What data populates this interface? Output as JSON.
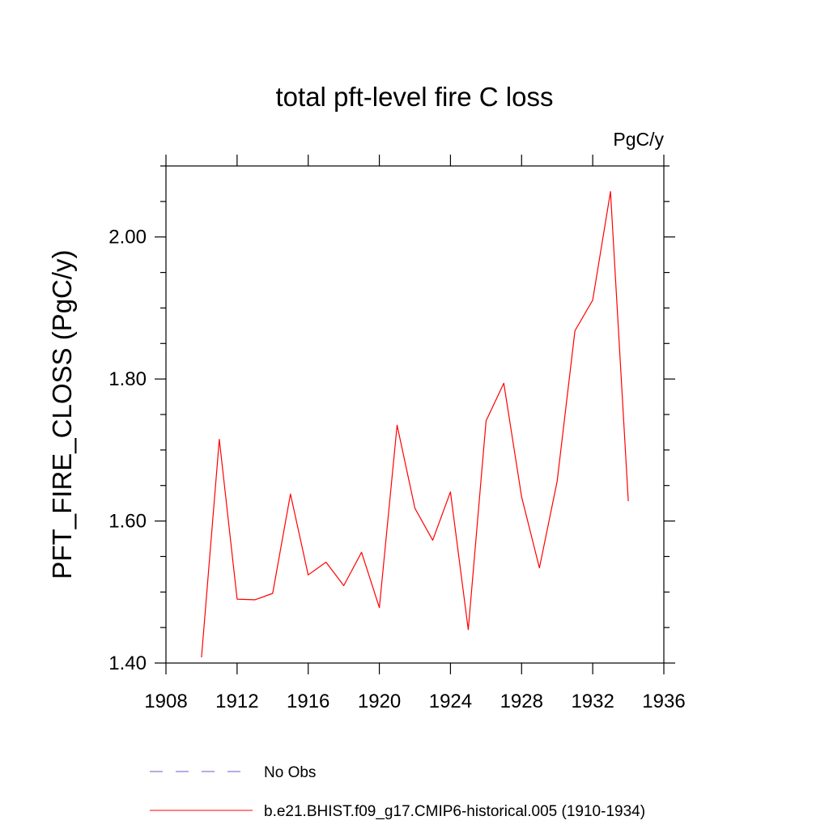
{
  "chart_data": {
    "type": "line",
    "title": "total pft-level fire C loss",
    "units_label": "PgC/y",
    "ylabel": "PFT_FIRE_CLOSS  (PgC/y)",
    "xlabel": "",
    "xlim": [
      1908,
      1936
    ],
    "ylim": [
      1.4,
      2.1
    ],
    "x_ticks": [
      1908,
      1912,
      1916,
      1920,
      1924,
      1928,
      1932,
      1936
    ],
    "x_tick_labels": [
      "1908",
      "1912",
      "1916",
      "1920",
      "1924",
      "1928",
      "1932",
      "1936"
    ],
    "y_ticks": [
      1.4,
      1.6,
      1.8,
      2.0
    ],
    "y_tick_labels": [
      "1.40",
      "1.60",
      "1.80",
      "2.00"
    ],
    "grid": false,
    "legend_position": "bottom",
    "series": [
      {
        "name": "b.e21.BHIST.f09_g17.CMIP6-historical.005 (1910-1934)",
        "color": "#ff0000",
        "style": "solid",
        "x": [
          1910,
          1911,
          1912,
          1913,
          1914,
          1915,
          1916,
          1917,
          1918,
          1919,
          1920,
          1921,
          1922,
          1923,
          1924,
          1925,
          1926,
          1927,
          1928,
          1929,
          1930,
          1931,
          1932,
          1933,
          1934
        ],
        "values": [
          1.408,
          1.715,
          1.49,
          1.489,
          1.498,
          1.638,
          1.524,
          1.542,
          1.509,
          1.556,
          1.478,
          1.735,
          1.618,
          1.573,
          1.641,
          1.447,
          1.741,
          1.794,
          1.634,
          1.534,
          1.656,
          1.868,
          1.911,
          2.064,
          1.628
        ]
      }
    ],
    "legend": [
      {
        "label": "No Obs",
        "color": "#6a5acd",
        "style": "dashed"
      },
      {
        "label": "b.e21.BHIST.f09_g17.CMIP6-historical.005 (1910-1934)",
        "color": "#ff0000",
        "style": "solid"
      }
    ]
  }
}
